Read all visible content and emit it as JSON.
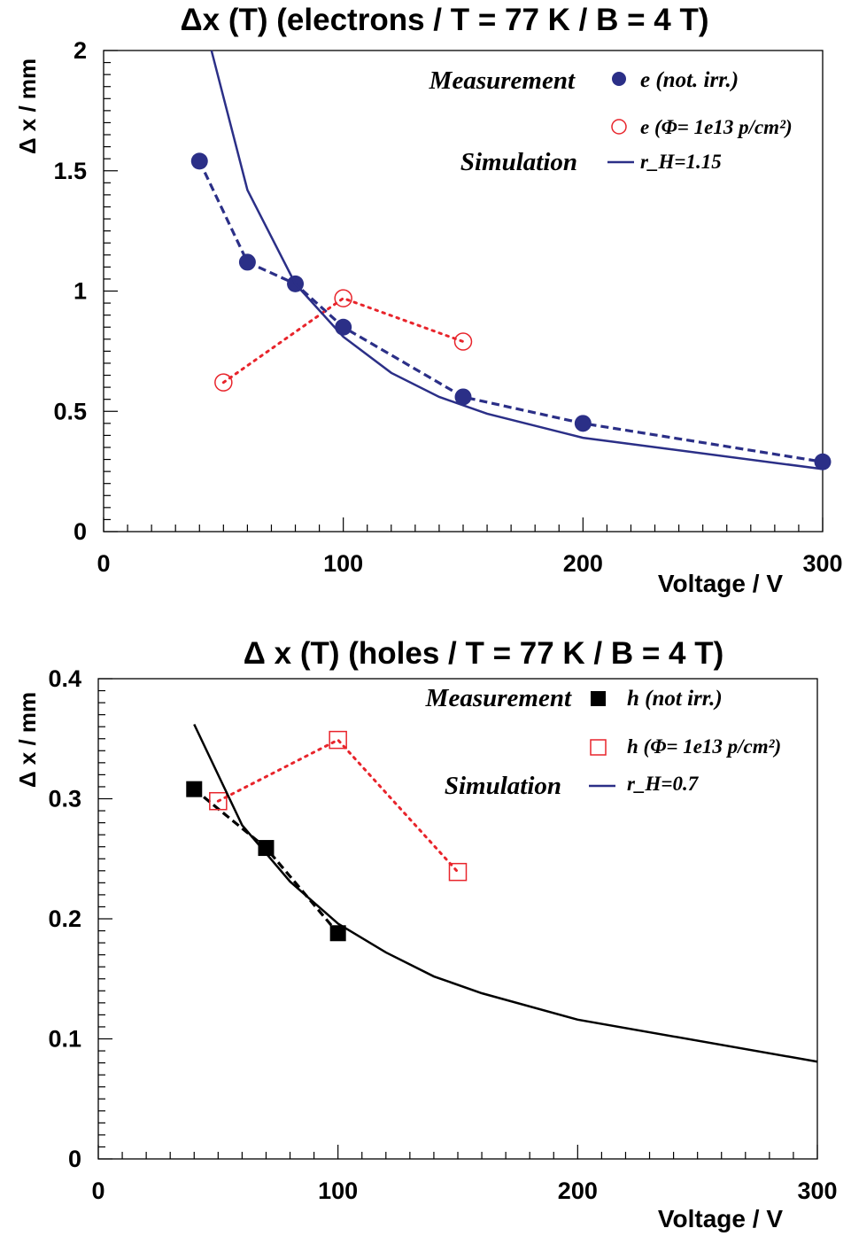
{
  "chart_data": [
    {
      "type": "line",
      "title": "Δx (T)  (electrons / T = 77 K  /  B = 4 T)",
      "xlabel": "Voltage / V",
      "ylabel": "Δ x / mm",
      "xlim": [
        0,
        300
      ],
      "ylim": [
        0,
        2
      ],
      "x_ticks": [
        "0",
        "100",
        "200",
        "300"
      ],
      "y_ticks": [
        "0",
        "0.5",
        "1",
        "1.5",
        "2"
      ],
      "legend_groups": [
        "Measurement",
        "Simulation"
      ],
      "legend_position": "top-right",
      "grid": false,
      "series": [
        {
          "name": "e (not. irr.)",
          "kind": "measurement",
          "color": "#2b2f87",
          "marker": "filled-circle",
          "line": "dashed",
          "x": [
            40,
            60,
            80,
            100,
            150,
            200,
            300
          ],
          "y": [
            1.54,
            1.12,
            1.03,
            0.85,
            0.56,
            0.45,
            0.29
          ]
        },
        {
          "name": "e (Φ= 1e13 p/cm²)",
          "kind": "measurement",
          "color": "#e8242b",
          "marker": "open-circle",
          "line": "dotted",
          "x": [
            50,
            100,
            150
          ],
          "y": [
            0.62,
            0.97,
            0.79
          ]
        },
        {
          "name": "r_H=1.15",
          "kind": "simulation",
          "color": "#2b2f87",
          "marker": "none",
          "line": "solid",
          "x": [
            45,
            60,
            80,
            100,
            120,
            140,
            160,
            200,
            300
          ],
          "y": [
            2.0,
            1.42,
            1.03,
            0.81,
            0.66,
            0.56,
            0.49,
            0.39,
            0.26
          ]
        }
      ]
    },
    {
      "type": "line",
      "title": "Δ x (T)  (holes / T = 77 K  /  B = 4 T)",
      "xlabel": "Voltage / V",
      "ylabel": "Δ x / mm",
      "xlim": [
        0,
        300
      ],
      "ylim": [
        0,
        0.4
      ],
      "x_ticks": [
        "0",
        "100",
        "200",
        "300"
      ],
      "y_ticks": [
        "0",
        "0.1",
        "0.2",
        "0.3",
        "0.4"
      ],
      "legend_groups": [
        "Measurement",
        "Simulation"
      ],
      "legend_position": "top-right",
      "grid": false,
      "series": [
        {
          "name": "h (not irr.)",
          "kind": "measurement",
          "color": "#000000",
          "marker": "filled-square",
          "line": "dashed",
          "x": [
            40,
            70,
            100
          ],
          "y": [
            0.308,
            0.259,
            0.188
          ]
        },
        {
          "name": "h (Φ= 1e13 p/cm²)",
          "kind": "measurement",
          "color": "#e8242b",
          "marker": "open-square",
          "line": "dotted",
          "x": [
            50,
            100,
            150
          ],
          "y": [
            0.298,
            0.349,
            0.239
          ]
        },
        {
          "name": "r_H=0.7",
          "kind": "simulation",
          "color": "#000000",
          "legend_color": "#2b2f87",
          "marker": "none",
          "line": "solid",
          "x": [
            40,
            60,
            80,
            100,
            120,
            140,
            160,
            200,
            300
          ],
          "y": [
            0.362,
            0.278,
            0.231,
            0.196,
            0.172,
            0.152,
            0.138,
            0.116,
            0.081
          ]
        }
      ]
    }
  ]
}
